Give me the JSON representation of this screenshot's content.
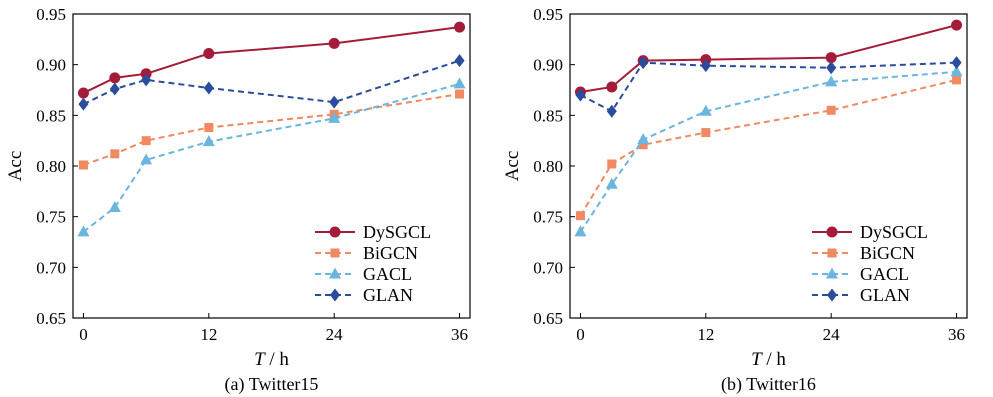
{
  "chart_data": [
    {
      "type": "line",
      "caption": "(a) Twitter15",
      "xlabel_var": "T",
      "xlabel_unit": " / h",
      "ylabel": "Acc",
      "xlim": [
        -1,
        37
      ],
      "ylim": [
        0.65,
        0.95
      ],
      "xticks": [
        0,
        12,
        24,
        36
      ],
      "yticks": [
        "0.65",
        "0.70",
        "0.75",
        "0.80",
        "0.85",
        "0.90",
        "0.95"
      ],
      "legend_position": "bottom-right",
      "series": [
        {
          "name": "DySGCL",
          "color": "#a51c3a",
          "marker": "circle",
          "dash": "solid",
          "x": [
            0,
            3,
            6,
            12,
            24,
            36
          ],
          "y": [
            0.872,
            0.887,
            0.891,
            0.911,
            0.921,
            0.937
          ]
        },
        {
          "name": "BiGCN",
          "color": "#ef8a62",
          "marker": "square",
          "dash": "dashed",
          "x": [
            0,
            3,
            6,
            12,
            24,
            36
          ],
          "y": [
            0.801,
            0.812,
            0.825,
            0.838,
            0.851,
            0.871
          ]
        },
        {
          "name": "GACL",
          "color": "#6bb5de",
          "marker": "triangle",
          "dash": "dashed",
          "x": [
            0,
            3,
            6,
            12,
            24,
            36
          ],
          "y": [
            0.735,
            0.759,
            0.806,
            0.824,
            0.847,
            0.881
          ]
        },
        {
          "name": "GLAN",
          "color": "#2a4d9b",
          "marker": "diamond",
          "dash": "dashed",
          "x": [
            0,
            3,
            6,
            12,
            24,
            36
          ],
          "y": [
            0.861,
            0.876,
            0.885,
            0.877,
            0.863,
            0.904
          ]
        }
      ]
    },
    {
      "type": "line",
      "caption": "(b) Twitter16",
      "xlabel_var": "T",
      "xlabel_unit": " / h",
      "ylabel": "Acc",
      "xlim": [
        -1,
        37
      ],
      "ylim": [
        0.65,
        0.95
      ],
      "xticks": [
        0,
        12,
        24,
        36
      ],
      "yticks": [
        "0.65",
        "0.70",
        "0.75",
        "0.80",
        "0.85",
        "0.90",
        "0.95"
      ],
      "legend_position": "bottom-right",
      "series": [
        {
          "name": "DySGCL",
          "color": "#a51c3a",
          "marker": "circle",
          "dash": "solid",
          "x": [
            0,
            3,
            6,
            12,
            24,
            36
          ],
          "y": [
            0.873,
            0.878,
            0.904,
            0.905,
            0.907,
            0.939
          ]
        },
        {
          "name": "BiGCN",
          "color": "#ef8a62",
          "marker": "square",
          "dash": "dashed",
          "x": [
            0,
            3,
            6,
            12,
            24,
            36
          ],
          "y": [
            0.751,
            0.802,
            0.821,
            0.833,
            0.855,
            0.885
          ]
        },
        {
          "name": "GACL",
          "color": "#6bb5de",
          "marker": "triangle",
          "dash": "dashed",
          "x": [
            0,
            3,
            6,
            12,
            24,
            36
          ],
          "y": [
            0.735,
            0.782,
            0.826,
            0.854,
            0.883,
            0.893
          ]
        },
        {
          "name": "GLAN",
          "color": "#2a4d9b",
          "marker": "diamond",
          "dash": "dashed",
          "x": [
            0,
            3,
            6,
            12,
            24,
            36
          ],
          "y": [
            0.87,
            0.854,
            0.902,
            0.899,
            0.897,
            0.902
          ]
        }
      ]
    }
  ]
}
